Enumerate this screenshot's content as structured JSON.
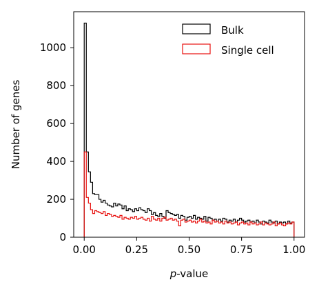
{
  "chart_data": {
    "type": "histogram",
    "xlabel_prefix": "p",
    "xlabel_suffix": "-value",
    "ylabel": "Number of genes",
    "xlim": [
      -0.05,
      1.05
    ],
    "ylim": [
      0,
      1190
    ],
    "xticks": [
      0.0,
      0.25,
      0.5,
      0.75,
      1.0
    ],
    "xtick_labels": [
      "0.00",
      "0.25",
      "0.50",
      "0.75",
      "1.00"
    ],
    "yticks": [
      0,
      200,
      400,
      600,
      800,
      1000
    ],
    "ytick_labels": [
      "0",
      "200",
      "400",
      "600",
      "800",
      "1000"
    ],
    "legend_position": "top-right",
    "bin_width": 0.01,
    "series": [
      {
        "name": "Bulk",
        "color": "#000000",
        "values": [
          1130,
          450,
          345,
          290,
          230,
          225,
          225,
          200,
          185,
          195,
          180,
          170,
          165,
          160,
          180,
          165,
          175,
          170,
          150,
          165,
          140,
          150,
          145,
          135,
          150,
          140,
          155,
          145,
          140,
          130,
          150,
          140,
          120,
          130,
          115,
          110,
          125,
          110,
          100,
          140,
          130,
          125,
          120,
          115,
          120,
          100,
          115,
          110,
          90,
          105,
          110,
          100,
          115,
          95,
          105,
          100,
          95,
          110,
          85,
          105,
          100,
          90,
          95,
          85,
          95,
          85,
          100,
          95,
          80,
          90,
          85,
          95,
          80,
          90,
          100,
          90,
          80,
          85,
          90,
          80,
          85,
          75,
          90,
          80,
          70,
          85,
          80,
          75,
          90,
          80,
          75,
          85,
          70,
          80,
          75,
          80,
          70,
          85,
          75,
          80
        ]
      },
      {
        "name": "Single cell",
        "color": "#e8110f",
        "values": [
          450,
          210,
          180,
          145,
          125,
          140,
          135,
          130,
          125,
          135,
          115,
          125,
          120,
          110,
          115,
          110,
          105,
          115,
          95,
          105,
          100,
          95,
          105,
          100,
          110,
          95,
          100,
          105,
          95,
          90,
          100,
          85,
          110,
          95,
          90,
          100,
          85,
          100,
          105,
          90,
          95,
          100,
          90,
          95,
          85,
          60,
          90,
          95,
          80,
          85,
          90,
          80,
          85,
          75,
          85,
          95,
          80,
          85,
          75,
          80,
          70,
          90,
          80,
          85,
          75,
          80,
          70,
          85,
          75,
          80,
          70,
          75,
          80,
          65,
          75,
          80,
          70,
          75,
          65,
          80,
          70,
          75,
          65,
          70,
          80,
          65,
          75,
          70,
          65,
          70,
          80,
          60,
          70,
          75,
          65,
          60,
          70,
          75,
          70,
          80
        ]
      }
    ]
  }
}
